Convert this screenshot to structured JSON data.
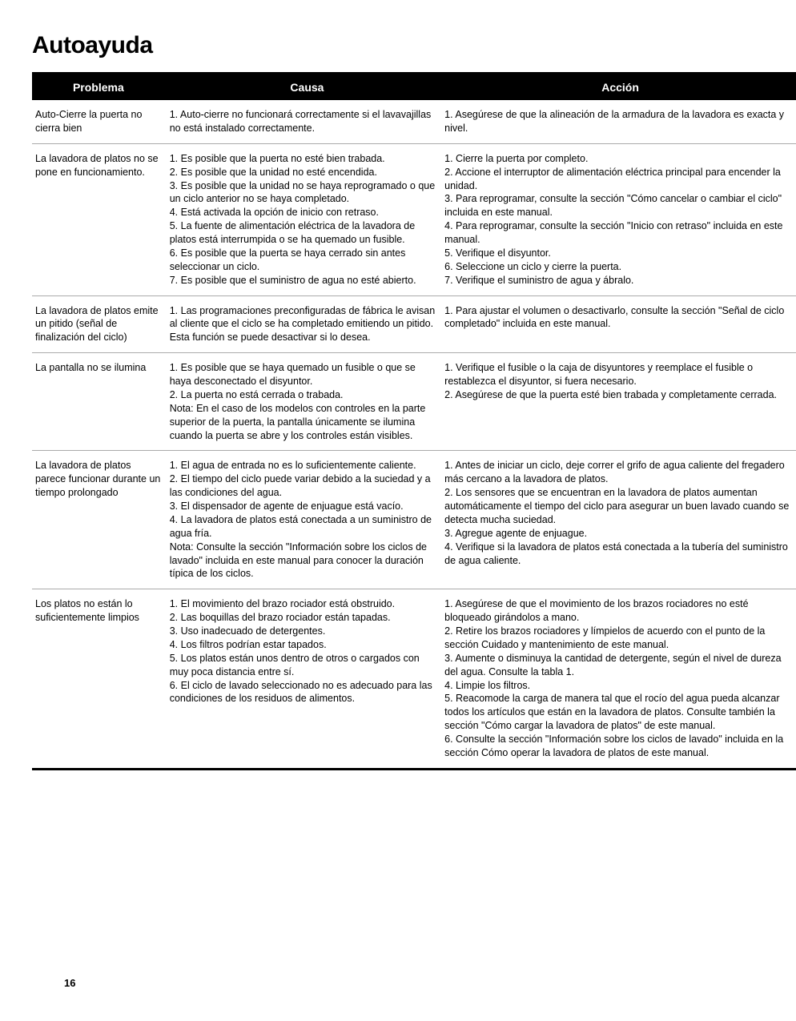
{
  "title": "Autoayuda",
  "pageNumber": "16",
  "headers": {
    "problema": "Problema",
    "causa": "Causa",
    "accion": "Acción"
  },
  "rows": [
    {
      "problema": "Auto-Cierre la puerta no cierra bien",
      "causa": "1. Auto-cierre no funcionará correctamente si el lavavajillas no está instalado correctamente.",
      "accion": "1. Asegúrese de que la alineación de la armadura de la lavadora es exacta y nivel."
    },
    {
      "problema": "La lavadora de platos no se pone en funcionamiento.",
      "causa": "1. Es posible que la puerta no esté bien trabada.\n2. Es posible que la unidad no esté encendida.\n3. Es posible que la unidad no se haya reprogramado o que un ciclo anterior no se haya completado.\n4. Está activada la opción de inicio con retraso.\n5. La fuente de alimentación eléctrica de la lavadora de platos está interrumpida o se ha quemado un fusible.\n6. Es posible que la puerta se haya cerrado sin antes seleccionar un ciclo.\n7. Es posible que el suministro de agua no esté abierto.",
      "accion": "1. Cierre la puerta por completo.\n2. Accione el interruptor de alimentación eléctrica principal para encender la unidad.\n3. Para reprogramar, consulte la sección \"Cómo cancelar o cambiar el ciclo\" incluida en este manual.\n4. Para reprogramar, consulte la sección \"Inicio con retraso\" incluida en este manual.\n5. Verifique el disyuntor.\n6. Seleccione un ciclo y cierre la puerta.\n7. Verifique el suministro de agua y ábralo."
    },
    {
      "problema": "La lavadora de platos emite un pitido (señal de finalización del ciclo)",
      "causa": "1. Las programaciones preconfiguradas de fábrica le avisan al cliente que el ciclo se ha completado emitiendo un pitido. Esta función se puede desactivar si lo desea.",
      "accion": "1. Para ajustar el volumen o desactivarlo, consulte la sección \"Señal de ciclo completado\" incluida en este manual."
    },
    {
      "problema": "La pantalla no se ilumina",
      "causa": "1. Es posible que se haya quemado un fusible o que se haya desconectado el disyuntor.\n2. La puerta no está cerrada o trabada.\nNota: En el caso de los modelos con controles en la parte superior de la puerta, la pantalla únicamente se ilumina cuando la puerta se abre y los controles están visibles.",
      "accion": "1. Verifique el fusible o la caja de disyuntores y reemplace el fusible o restablezca el disyuntor, si fuera necesario.\n2. Asegúrese de que la puerta esté bien trabada y completamente cerrada."
    },
    {
      "problema": "La lavadora de platos parece funcionar durante un tiempo prolongado",
      "causa": "1. El agua de entrada no es lo suficientemente caliente.\n2. El tiempo del ciclo puede variar debido a la suciedad y a las condiciones del agua.\n3. El dispensador de agente de enjuague está vacío.\n4. La lavadora de platos está conectada a un suministro de agua fría.\nNota: Consulte la sección \"Información sobre los ciclos de lavado\" incluida en este manual para conocer la duración típica de los ciclos.",
      "accion": "1. Antes de iniciar un ciclo, deje correr el grifo de agua caliente del fregadero más cercano a la lavadora de platos.\n2. Los sensores que se encuentran en la lavadora de platos aumentan automáticamente el tiempo del ciclo para asegurar un buen lavado cuando se detecta mucha suciedad.\n3. Agregue agente de enjuague.\n4. Verifique si la lavadora de platos está conectada a la tubería del suministro de agua caliente."
    },
    {
      "problema": "Los platos no están lo suficientemente limpios",
      "causa": "1. El movimiento del brazo rociador está obstruido.\n2. Las boquillas del brazo rociador están tapadas.\n3. Uso inadecuado de detergentes.\n4. Los filtros podrían estar tapados.\n5. Los platos están unos dentro de otros o cargados con muy poca distancia entre sí.\n6. El ciclo de lavado seleccionado no es adecuado para las condiciones de los residuos de alimentos.",
      "accion": "1. Asegúrese de que el movimiento de los brazos rociadores no esté bloqueado girándolos a mano.\n2. Retire los brazos rociadores y límpielos de acuerdo con el punto de la sección Cuidado y mantenimiento de este manual.\n3. Aumente o disminuya la cantidad de detergente, según el nivel de dureza del agua. Consulte la tabla 1.\n4. Limpie los filtros.\n5. Reacomode la carga de manera tal que el rocío del agua pueda alcanzar todos los artículos que están en la lavadora de platos. Consulte también la sección \"Cómo cargar la lavadora de platos\" de este manual.\n6. Consulte la sección \"Información sobre los ciclos de lavado\" incluida en la sección Cómo operar la lavadora de platos de este manual."
    }
  ]
}
